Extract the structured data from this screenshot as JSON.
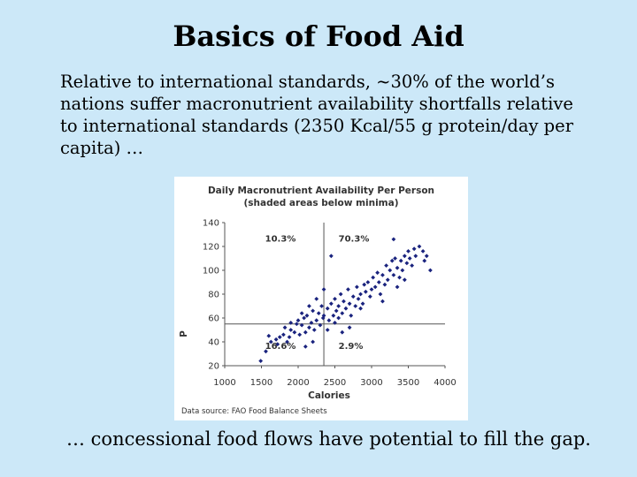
{
  "slide": {
    "title": "Basics of Food Aid",
    "intro": "Relative to international standards, ~30% of the world’s nations suffer macronutrient availability shortfalls relative to international standards (2350 Kcal/55 g protein/day per capita) …",
    "footer": "… concessional food flows have potential to fill the gap."
  },
  "chart_data": {
    "type": "scatter",
    "title": "Daily Macronutrient Availability Per Person",
    "subtitle": "(shaded areas below minima)",
    "xlabel": "Calories",
    "ylabel": "P",
    "source": "Data source: FAO Food Balance Sheets",
    "xlim": [
      1000,
      4000
    ],
    "ylim": [
      20,
      140
    ],
    "xticks": [
      1000,
      1500,
      2000,
      2500,
      3000,
      3500,
      4000
    ],
    "yticks": [
      20,
      40,
      60,
      80,
      100,
      120,
      140
    ],
    "thresholds": {
      "x": 2350,
      "y": 55
    },
    "grid": false,
    "legend": "none",
    "point_color": "#1a237e",
    "quadrant_labels": [
      {
        "text": "10.3%",
        "x": 1550,
        "y": 124
      },
      {
        "text": "70.3%",
        "x": 2550,
        "y": 124
      },
      {
        "text": "16.6%",
        "x": 1550,
        "y": 34
      },
      {
        "text": "2.9%",
        "x": 2550,
        "y": 34
      }
    ],
    "points": [
      [
        1490,
        24
      ],
      [
        1560,
        32
      ],
      [
        1600,
        45
      ],
      [
        1630,
        40
      ],
      [
        1700,
        42
      ],
      [
        1720,
        38
      ],
      [
        1800,
        46
      ],
      [
        1820,
        52
      ],
      [
        1850,
        40
      ],
      [
        1880,
        44
      ],
      [
        1900,
        50
      ],
      [
        1950,
        48
      ],
      [
        1980,
        55
      ],
      [
        2000,
        58
      ],
      [
        2020,
        46
      ],
      [
        2050,
        54
      ],
      [
        2080,
        60
      ],
      [
        2100,
        48
      ],
      [
        2120,
        62
      ],
      [
        2150,
        52
      ],
      [
        2180,
        56
      ],
      [
        2200,
        66
      ],
      [
        2220,
        50
      ],
      [
        2250,
        58
      ],
      [
        2280,
        64
      ],
      [
        2300,
        54
      ],
      [
        2320,
        70
      ],
      [
        2340,
        60
      ],
      [
        2200,
        40
      ],
      [
        2100,
        36
      ],
      [
        2400,
        68
      ],
      [
        2420,
        58
      ],
      [
        2450,
        72
      ],
      [
        2480,
        62
      ],
      [
        2500,
        76
      ],
      [
        2520,
        66
      ],
      [
        2550,
        70
      ],
      [
        2580,
        80
      ],
      [
        2600,
        64
      ],
      [
        2620,
        74
      ],
      [
        2650,
        68
      ],
      [
        2680,
        84
      ],
      [
        2700,
        72
      ],
      [
        2720,
        62
      ],
      [
        2750,
        78
      ],
      [
        2780,
        70
      ],
      [
        2800,
        86
      ],
      [
        2820,
        76
      ],
      [
        2850,
        80
      ],
      [
        2880,
        72
      ],
      [
        2900,
        88
      ],
      [
        2920,
        82
      ],
      [
        2950,
        90
      ],
      [
        2980,
        78
      ],
      [
        3000,
        84
      ],
      [
        3020,
        94
      ],
      [
        3050,
        86
      ],
      [
        3080,
        98
      ],
      [
        3100,
        90
      ],
      [
        3120,
        80
      ],
      [
        3150,
        96
      ],
      [
        3180,
        88
      ],
      [
        3200,
        104
      ],
      [
        3220,
        92
      ],
      [
        3250,
        100
      ],
      [
        3280,
        108
      ],
      [
        3300,
        96
      ],
      [
        3320,
        110
      ],
      [
        3350,
        102
      ],
      [
        3380,
        94
      ],
      [
        3400,
        108
      ],
      [
        3420,
        100
      ],
      [
        3450,
        112
      ],
      [
        3480,
        106
      ],
      [
        3500,
        116
      ],
      [
        3520,
        110
      ],
      [
        3550,
        104
      ],
      [
        3580,
        118
      ],
      [
        3600,
        112
      ],
      [
        3650,
        120
      ],
      [
        3700,
        116
      ],
      [
        3720,
        108
      ],
      [
        3750,
        112
      ],
      [
        3800,
        100
      ],
      [
        3300,
        126
      ],
      [
        2450,
        112
      ],
      [
        2350,
        84
      ],
      [
        2250,
        76
      ],
      [
        2600,
        48
      ],
      [
        2700,
        52
      ],
      [
        2500,
        56
      ],
      [
        2400,
        50
      ],
      [
        1750,
        44
      ],
      [
        1900,
        56
      ],
      [
        2050,
        64
      ],
      [
        2150,
        70
      ],
      [
        2350,
        62
      ],
      [
        2550,
        60
      ],
      [
        2850,
        68
      ],
      [
        3150,
        74
      ],
      [
        3350,
        86
      ],
      [
        3450,
        92
      ]
    ]
  }
}
